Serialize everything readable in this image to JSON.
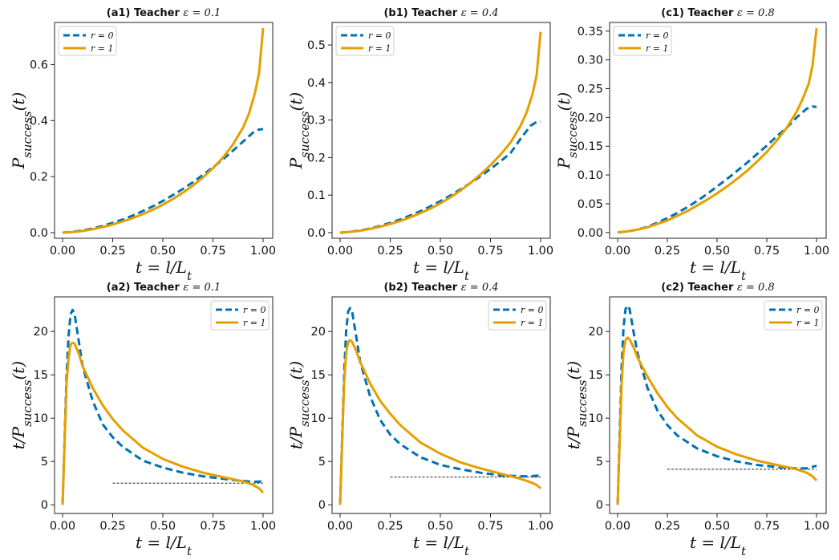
{
  "chart_data": [
    {
      "id": "a1",
      "type": "line",
      "title_prefix": "(a1) Teacher",
      "title_param": "ε = 0.1",
      "xlabel": "t = l/L_t",
      "ylabel": "P_success(t)",
      "xlim": [
        0,
        1
      ],
      "ylim": [
        -0.02,
        0.75
      ],
      "xticks": [
        "0.00",
        "0.25",
        "0.50",
        "0.75",
        "1.00"
      ],
      "yticks": [
        "0.0",
        "0.2",
        "0.4",
        "0.6"
      ],
      "legend_position": "upper-left",
      "series": [
        {
          "name": "r = 0",
          "style": "dashed",
          "color": "#0072b2",
          "x": [
            0,
            0.05,
            0.1,
            0.15,
            0.2,
            0.25,
            0.3,
            0.35,
            0.4,
            0.45,
            0.5,
            0.55,
            0.6,
            0.65,
            0.7,
            0.75,
            0.8,
            0.85,
            0.9,
            0.95,
            0.98,
            1.0
          ],
          "y": [
            0,
            0.003,
            0.008,
            0.015,
            0.024,
            0.035,
            0.047,
            0.061,
            0.077,
            0.094,
            0.113,
            0.134,
            0.156,
            0.18,
            0.206,
            0.233,
            0.262,
            0.293,
            0.325,
            0.357,
            0.368,
            0.37
          ]
        },
        {
          "name": "r = 1",
          "style": "solid",
          "color": "#e69f00",
          "x": [
            0,
            0.05,
            0.1,
            0.15,
            0.2,
            0.25,
            0.3,
            0.35,
            0.4,
            0.45,
            0.5,
            0.55,
            0.6,
            0.65,
            0.7,
            0.75,
            0.8,
            0.85,
            0.9,
            0.93,
            0.96,
            0.98,
            1.0
          ],
          "y": [
            0,
            0.002,
            0.006,
            0.012,
            0.02,
            0.029,
            0.04,
            0.052,
            0.066,
            0.082,
            0.1,
            0.12,
            0.143,
            0.168,
            0.197,
            0.23,
            0.268,
            0.315,
            0.375,
            0.425,
            0.5,
            0.57,
            0.73
          ]
        }
      ]
    },
    {
      "id": "b1",
      "type": "line",
      "title_prefix": "(b1) Teacher",
      "title_param": "ε = 0.4",
      "xlabel": "t = l/L_t",
      "ylabel": "P_success(t)",
      "xlim": [
        0,
        1
      ],
      "ylim": [
        -0.015,
        0.56
      ],
      "xticks": [
        "0.00",
        "0.25",
        "0.50",
        "0.75",
        "1.00"
      ],
      "yticks": [
        "0.0",
        "0.1",
        "0.2",
        "0.3",
        "0.4",
        "0.5"
      ],
      "legend_position": "upper-left",
      "series": [
        {
          "name": "r = 0",
          "style": "dashed",
          "color": "#0072b2",
          "x": [
            0,
            0.05,
            0.1,
            0.15,
            0.2,
            0.25,
            0.3,
            0.35,
            0.4,
            0.45,
            0.5,
            0.55,
            0.6,
            0.65,
            0.7,
            0.75,
            0.8,
            0.85,
            0.9,
            0.95,
            0.98,
            1.0
          ],
          "y": [
            0,
            0.002,
            0.006,
            0.011,
            0.018,
            0.026,
            0.035,
            0.046,
            0.057,
            0.07,
            0.084,
            0.099,
            0.115,
            0.132,
            0.15,
            0.17,
            0.19,
            0.212,
            0.25,
            0.285,
            0.295,
            0.295
          ]
        },
        {
          "name": "r = 1",
          "style": "solid",
          "color": "#e69f00",
          "x": [
            0,
            0.05,
            0.1,
            0.15,
            0.2,
            0.25,
            0.3,
            0.35,
            0.4,
            0.45,
            0.5,
            0.55,
            0.6,
            0.65,
            0.7,
            0.75,
            0.8,
            0.85,
            0.9,
            0.93,
            0.96,
            0.98,
            1.0
          ],
          "y": [
            0,
            0.002,
            0.005,
            0.01,
            0.016,
            0.023,
            0.031,
            0.041,
            0.052,
            0.064,
            0.078,
            0.094,
            0.112,
            0.132,
            0.155,
            0.18,
            0.208,
            0.24,
            0.285,
            0.32,
            0.37,
            0.42,
            0.535
          ]
        }
      ]
    },
    {
      "id": "c1",
      "type": "line",
      "title_prefix": "(c1) Teacher",
      "title_param": "ε = 0.8",
      "xlabel": "t = l/L_t",
      "ylabel": "P_success(t)",
      "xlim": [
        0,
        1
      ],
      "ylim": [
        -0.01,
        0.365
      ],
      "xticks": [
        "0.00",
        "0.25",
        "0.50",
        "0.75",
        "1.00"
      ],
      "yticks": [
        "0.00",
        "0.05",
        "0.10",
        "0.15",
        "0.20",
        "0.25",
        "0.30",
        "0.35"
      ],
      "legend_position": "upper-left",
      "series": [
        {
          "name": "r = 0",
          "style": "dashed",
          "color": "#0072b2",
          "x": [
            0,
            0.05,
            0.1,
            0.15,
            0.2,
            0.25,
            0.3,
            0.35,
            0.4,
            0.45,
            0.5,
            0.55,
            0.6,
            0.65,
            0.7,
            0.75,
            0.8,
            0.85,
            0.9,
            0.95,
            0.98,
            1.0
          ],
          "y": [
            0,
            0.002,
            0.005,
            0.01,
            0.017,
            0.025,
            0.034,
            0.044,
            0.055,
            0.067,
            0.08,
            0.093,
            0.107,
            0.121,
            0.136,
            0.151,
            0.167,
            0.182,
            0.2,
            0.215,
            0.219,
            0.218
          ]
        },
        {
          "name": "r = 1",
          "style": "solid",
          "color": "#e69f00",
          "x": [
            0,
            0.05,
            0.1,
            0.15,
            0.2,
            0.25,
            0.3,
            0.35,
            0.4,
            0.45,
            0.5,
            0.55,
            0.6,
            0.65,
            0.7,
            0.75,
            0.8,
            0.85,
            0.9,
            0.93,
            0.96,
            0.98,
            1.0
          ],
          "y": [
            0,
            0.002,
            0.005,
            0.009,
            0.015,
            0.021,
            0.029,
            0.037,
            0.047,
            0.057,
            0.068,
            0.08,
            0.093,
            0.107,
            0.123,
            0.14,
            0.16,
            0.182,
            0.21,
            0.232,
            0.258,
            0.29,
            0.355
          ]
        }
      ]
    },
    {
      "id": "a2",
      "type": "line",
      "title_prefix": "(a2) Teacher",
      "title_param": "ε = 0.1",
      "xlabel": "t = l/L_t",
      "ylabel": "t/P_success(t)",
      "xlim": [
        0,
        1
      ],
      "ylim": [
        -1,
        24
      ],
      "xticks": [
        "0.00",
        "0.25",
        "0.50",
        "0.75",
        "1.00"
      ],
      "yticks": [
        "0",
        "5",
        "10",
        "15",
        "20"
      ],
      "legend_position": "upper-right",
      "reference_line": {
        "x": [
          0.25,
          1.0
        ],
        "y": 2.5,
        "style": "thin-dashed",
        "color": "#000000"
      },
      "series": [
        {
          "name": "r = 0",
          "style": "dashed",
          "color": "#0072b2",
          "x": [
            0,
            0.02,
            0.03,
            0.04,
            0.05,
            0.06,
            0.08,
            0.1,
            0.15,
            0.2,
            0.25,
            0.3,
            0.4,
            0.5,
            0.6,
            0.7,
            0.8,
            0.9,
            0.95,
            1.0
          ],
          "y": [
            0,
            15,
            19.5,
            22,
            22.5,
            22,
            19,
            16,
            12,
            9.3,
            7.8,
            6.7,
            5.1,
            4.3,
            3.7,
            3.3,
            3.0,
            2.75,
            2.65,
            2.7
          ]
        },
        {
          "name": "r = 1",
          "style": "solid",
          "color": "#e69f00",
          "x": [
            0,
            0.02,
            0.03,
            0.04,
            0.05,
            0.06,
            0.08,
            0.1,
            0.15,
            0.2,
            0.25,
            0.3,
            0.4,
            0.5,
            0.6,
            0.7,
            0.8,
            0.9,
            0.95,
            0.98,
            1.0
          ],
          "y": [
            0,
            14,
            17,
            18.5,
            18.7,
            18.6,
            17.5,
            16,
            13.5,
            11.5,
            9.9,
            8.6,
            6.6,
            5.3,
            4.4,
            3.7,
            3.2,
            2.7,
            2.3,
            1.9,
            1.4
          ]
        }
      ]
    },
    {
      "id": "b2",
      "type": "line",
      "title_prefix": "(b2) Teacher",
      "title_param": "ε = 0.4",
      "xlabel": "t = l/L_t",
      "ylabel": "t/P_success(t)",
      "xlim": [
        0,
        1
      ],
      "ylim": [
        -1,
        24
      ],
      "xticks": [
        "0.00",
        "0.25",
        "0.50",
        "0.75",
        "1.00"
      ],
      "yticks": [
        "0",
        "5",
        "10",
        "15",
        "20"
      ],
      "legend_position": "upper-right",
      "reference_line": {
        "x": [
          0.25,
          1.0
        ],
        "y": 3.2,
        "style": "thin-dashed",
        "color": "#000000"
      },
      "series": [
        {
          "name": "r = 0",
          "style": "dashed",
          "color": "#0072b2",
          "x": [
            0,
            0.02,
            0.03,
            0.04,
            0.05,
            0.06,
            0.08,
            0.1,
            0.15,
            0.2,
            0.25,
            0.3,
            0.4,
            0.5,
            0.6,
            0.7,
            0.8,
            0.9,
            0.95,
            1.0
          ],
          "y": [
            0,
            15,
            20,
            22.3,
            22.7,
            22.3,
            19.5,
            16.5,
            12.5,
            9.8,
            8.1,
            7.0,
            5.5,
            4.6,
            4.1,
            3.7,
            3.4,
            3.3,
            3.3,
            3.4
          ]
        },
        {
          "name": "r = 1",
          "style": "solid",
          "color": "#e69f00",
          "x": [
            0,
            0.02,
            0.03,
            0.04,
            0.05,
            0.06,
            0.08,
            0.1,
            0.15,
            0.2,
            0.25,
            0.3,
            0.4,
            0.5,
            0.6,
            0.7,
            0.8,
            0.9,
            0.95,
            0.98,
            1.0
          ],
          "y": [
            0,
            14,
            17.5,
            18.8,
            19,
            18.8,
            17.8,
            16.5,
            14,
            12,
            10.5,
            9.2,
            7.2,
            5.9,
            4.9,
            4.2,
            3.6,
            3.0,
            2.6,
            2.3,
            1.9
          ]
        }
      ]
    },
    {
      "id": "c2",
      "type": "line",
      "title_prefix": "(c2) Teacher",
      "title_param": "ε = 0.8",
      "xlabel": "t = l/L_t",
      "ylabel": "t/P_success(t)",
      "xlim": [
        0,
        1
      ],
      "ylim": [
        -1,
        24
      ],
      "xticks": [
        "0.00",
        "0.25",
        "0.50",
        "0.75",
        "1.00"
      ],
      "yticks": [
        "0",
        "5",
        "10",
        "15",
        "20"
      ],
      "legend_position": "upper-right",
      "reference_line": {
        "x": [
          0.25,
          1.0
        ],
        "y": 4.1,
        "style": "thin-dashed",
        "color": "#000000"
      },
      "series": [
        {
          "name": "r = 0",
          "style": "dashed",
          "color": "#0072b2",
          "x": [
            0,
            0.02,
            0.03,
            0.04,
            0.05,
            0.06,
            0.08,
            0.1,
            0.15,
            0.2,
            0.25,
            0.3,
            0.4,
            0.5,
            0.6,
            0.7,
            0.8,
            0.9,
            0.95,
            1.0
          ],
          "y": [
            0,
            16,
            20.5,
            22.6,
            23,
            22.6,
            20,
            17.5,
            13.5,
            10.9,
            9.2,
            8.0,
            6.5,
            5.6,
            5.0,
            4.6,
            4.35,
            4.2,
            4.2,
            4.5
          ]
        },
        {
          "name": "r = 1",
          "style": "solid",
          "color": "#e69f00",
          "x": [
            0,
            0.02,
            0.03,
            0.04,
            0.05,
            0.06,
            0.08,
            0.1,
            0.15,
            0.2,
            0.25,
            0.3,
            0.4,
            0.5,
            0.6,
            0.7,
            0.8,
            0.9,
            0.95,
            0.98,
            1.0
          ],
          "y": [
            0,
            14,
            17.8,
            19,
            19.3,
            19.1,
            18.2,
            17,
            14.8,
            12.9,
            11.3,
            10,
            8.0,
            6.7,
            5.8,
            5.1,
            4.6,
            4.1,
            3.7,
            3.3,
            2.8
          ]
        }
      ]
    }
  ]
}
